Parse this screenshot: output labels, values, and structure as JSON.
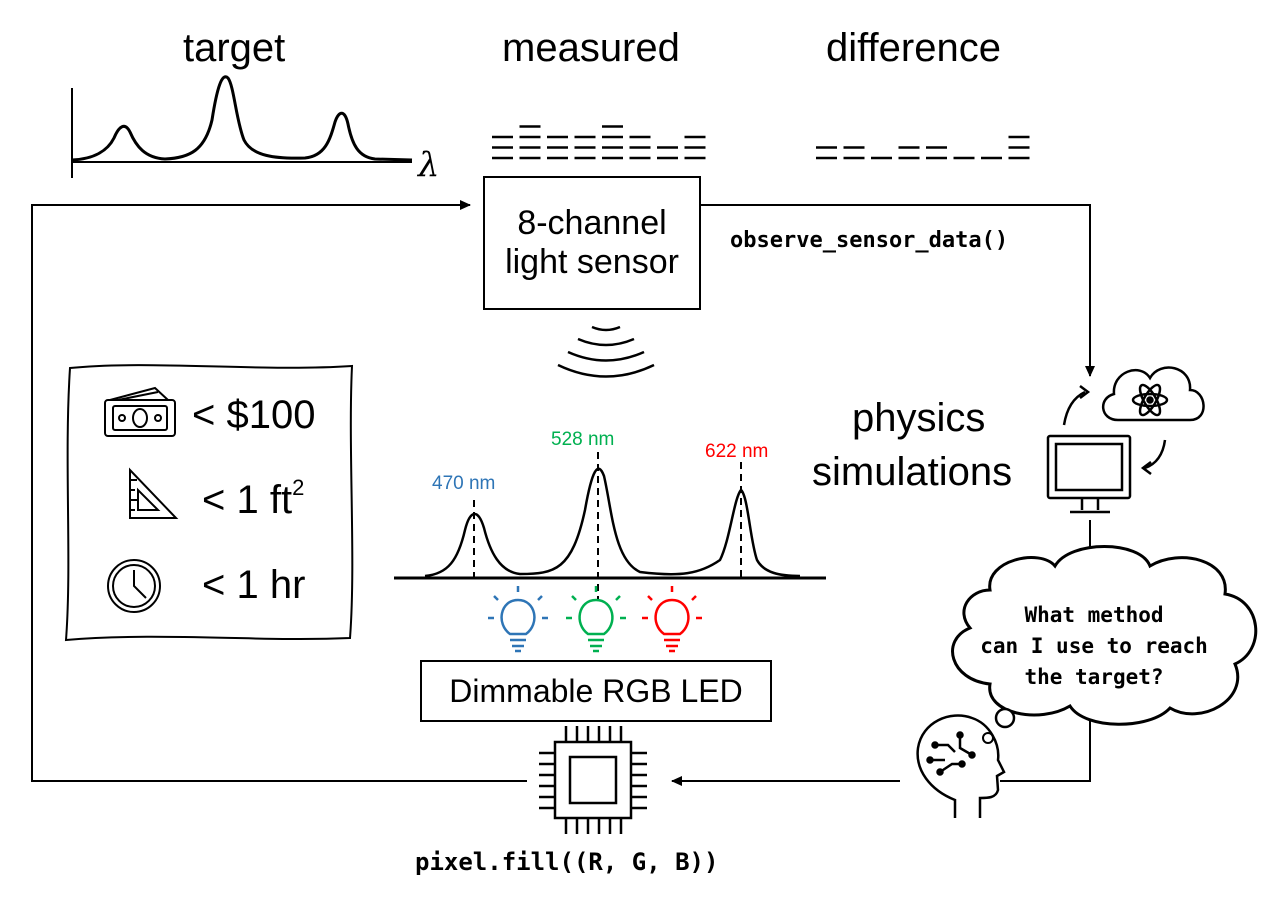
{
  "labels": {
    "target": "target",
    "measured": "measured",
    "difference": "difference",
    "lambda": "λ",
    "sensor_line1": "8-channel",
    "sensor_line2": "light sensor",
    "observe_call": "observe_sensor_data()",
    "physics_line1": "physics",
    "physics_line2": "simulations",
    "thought_line1": "What method",
    "thought_line2": "can I use to reach",
    "thought_line3": "the target?",
    "led_box": "Dimmable RGB LED",
    "pixel_call": "pixel.fill((R, G, B))"
  },
  "constraints": [
    {
      "icon": "money-icon",
      "text": "< $100"
    },
    {
      "icon": "set-square-icon",
      "text": "< 1 ft",
      "sup": "2"
    },
    {
      "icon": "clock-icon",
      "text": "< 1 hr"
    }
  ],
  "wavelengths": [
    {
      "label": "470 nm",
      "color": "#2E75B6"
    },
    {
      "label": "528 nm",
      "color": "#00B050"
    },
    {
      "label": "622 nm",
      "color": "#FF0000"
    }
  ],
  "bulb_colors": [
    "#2E75B6",
    "#00B050",
    "#FF0000"
  ],
  "measured_levels": [
    3,
    4,
    3,
    3,
    4,
    3,
    2,
    3
  ],
  "difference_levels": [
    2,
    2,
    1,
    2,
    2,
    1,
    1,
    3
  ]
}
